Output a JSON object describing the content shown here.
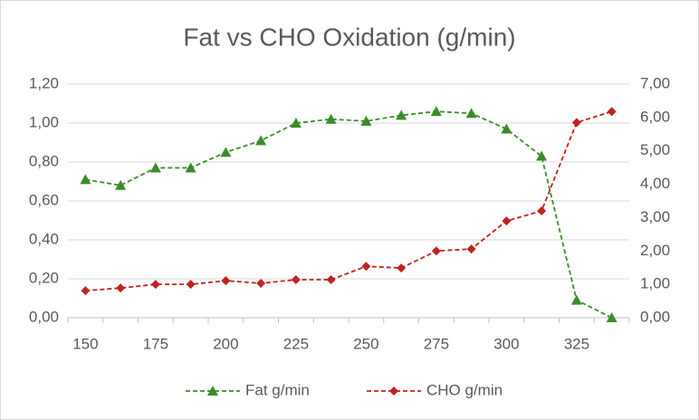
{
  "chart_data": {
    "type": "line",
    "title": "Fat vs CHO Oxidation (g/min)",
    "categories": [
      "150",
      null,
      "175",
      null,
      "200",
      null,
      "225",
      null,
      "250",
      null,
      "275",
      null,
      "300",
      null,
      "325",
      null
    ],
    "series": [
      {
        "name": "Fat g/min",
        "color": "#3b8c2a",
        "marker": "triangle",
        "axis": "y",
        "values": [
          0.71,
          0.68,
          0.77,
          0.77,
          0.85,
          0.91,
          1.0,
          1.02,
          1.01,
          1.04,
          1.06,
          1.05,
          0.97,
          0.83,
          0.09,
          0.0
        ]
      },
      {
        "name": "CHO g/min",
        "color": "#c0231e",
        "marker": "diamond",
        "axis": "y2",
        "values": [
          0.81,
          0.89,
          1.0,
          1.0,
          1.11,
          1.03,
          1.14,
          1.14,
          1.54,
          1.49,
          2.0,
          2.06,
          2.9,
          3.2,
          5.85,
          6.18
        ]
      }
    ],
    "ylim": [
      0,
      1.2
    ],
    "yticks": [
      {
        "value": 0,
        "label": "0,00"
      },
      {
        "value": 0.2,
        "label": "0,20"
      },
      {
        "value": 0.4,
        "label": "0,40"
      },
      {
        "value": 0.6,
        "label": "0,60"
      },
      {
        "value": 0.8,
        "label": "0,80"
      },
      {
        "value": 1.0,
        "label": "1,00"
      },
      {
        "value": 1.2,
        "label": "1,20"
      }
    ],
    "y2lim": [
      0,
      7
    ],
    "y2ticks": [
      {
        "value": 0,
        "label": "0,00"
      },
      {
        "value": 1,
        "label": "1,00"
      },
      {
        "value": 2,
        "label": "2,00"
      },
      {
        "value": 3,
        "label": "3,00"
      },
      {
        "value": 4,
        "label": "4,00"
      },
      {
        "value": 5,
        "label": "5,00"
      },
      {
        "value": 6,
        "label": "6,00"
      },
      {
        "value": 7,
        "label": "7,00"
      }
    ],
    "grid": true,
    "legend": "bottom"
  }
}
